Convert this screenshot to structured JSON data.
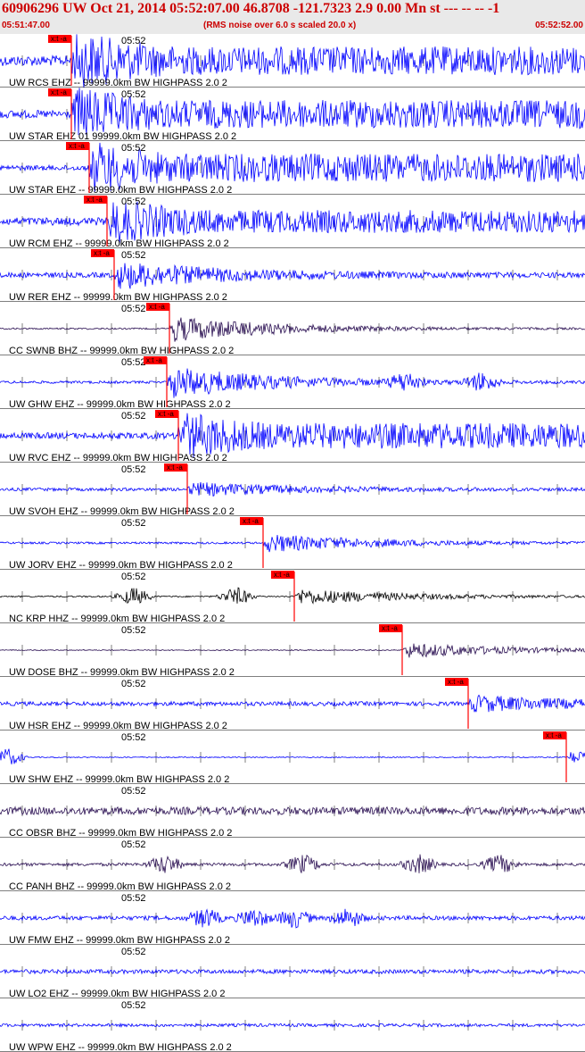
{
  "header": {
    "title": "60906296 UW Oct 21, 2014 05:52:07.00   46.8708 -121.7323  2.9 0.00 Mn st --- -- --  -1",
    "start_time": "05:51:47.00",
    "rms_note": "(RMS noise over 6.0 s scaled 20.0 x)",
    "end_time": "05:52:52.00"
  },
  "minute_label": "05:52",
  "pick_label": "x:t -a",
  "colors": {
    "blue": "#0000ff",
    "purple": "#2a0f52",
    "black": "#000000",
    "pick": "#ff0000",
    "grid": "#000000"
  },
  "traces": [
    {
      "label": "UW RCS EHZ -- 99999.0km BW  HIGHPASS  2.0  2",
      "color": "blue",
      "pick": 80,
      "level": 0.2,
      "amp": 1.0,
      "bursts": []
    },
    {
      "label": "UW STAR EHZ 01 99999.0km BW  HIGHPASS  2.0  2",
      "color": "blue",
      "pick": 80,
      "level": 0.15,
      "amp": 1.0,
      "bursts": []
    },
    {
      "label": "UW STAR EHZ -- 99999.0km BW  HIGHPASS  2.0  2",
      "color": "blue",
      "pick": 100,
      "level": 0.1,
      "amp": 1.0,
      "bursts": []
    },
    {
      "label": "UW RCM EHZ -- 99999.0km BW  HIGHPASS  2.0  2",
      "color": "blue",
      "pick": 120,
      "level": 0.15,
      "amp": 0.8,
      "bursts": []
    },
    {
      "label": "UW RER EHZ -- 99999.0km BW  HIGHPASS  2.0  2",
      "color": "blue",
      "pick": 128,
      "level": 0.1,
      "amp": 0.5,
      "bursts": []
    },
    {
      "label": "CC SWNB BHZ -- 99999.0km BW  HIGHPASS  2.0  2",
      "color": "purple",
      "pick": 190,
      "level": 0.03,
      "amp": 0.5,
      "bursts": []
    },
    {
      "label": "UW GHW EHZ -- 99999.0km BW  HIGHPASS  2.0  2",
      "color": "blue",
      "pick": 187,
      "level": 0.05,
      "amp": 0.6,
      "bursts": [
        455,
        540
      ]
    },
    {
      "label": "UW RVC EHZ -- 99999.0km BW  HIGHPASS  2.0  2",
      "color": "blue",
      "pick": 200,
      "level": 0.12,
      "amp": 0.9,
      "bursts": []
    },
    {
      "label": "UW SVOH EHZ -- 99999.0km BW  HIGHPASS  2.0  2",
      "color": "blue",
      "pick": 210,
      "level": 0.06,
      "amp": 0.25,
      "bursts": []
    },
    {
      "label": "UW JORV EHZ -- 99999.0km BW  HIGHPASS  2.0  2",
      "color": "blue",
      "pick": 295,
      "level": 0.04,
      "amp": 0.35,
      "bursts": []
    },
    {
      "label": "NC KRP HHZ -- 99999.0km BW  HIGHPASS  2.0  2",
      "color": "black",
      "pick": 330,
      "level": 0.03,
      "amp": 0.3,
      "bursts": [
        150,
        265
      ]
    },
    {
      "label": "UW DOSE BHZ -- 99999.0km BW  HIGHPASS  2.0  2",
      "color": "purple",
      "pick": 451,
      "level": 0.02,
      "amp": 0.3,
      "bursts": []
    },
    {
      "label": "UW HSR EHZ -- 99999.0km BW  HIGHPASS  2.0  2",
      "color": "blue",
      "pick": 525,
      "level": 0.08,
      "amp": 0.3,
      "bursts": []
    },
    {
      "label": "UW SHW EHZ -- 99999.0km BW  HIGHPASS  2.0  2",
      "color": "blue",
      "pick": 635,
      "level": 0.02,
      "amp": 0.25,
      "bursts": [
        8
      ]
    },
    {
      "label": "CC OBSR BHZ -- 99999.0km BW  HIGHPASS  2.0  2",
      "color": "purple",
      "pick": null,
      "level": 0.15,
      "amp": 0.0,
      "bursts": []
    },
    {
      "label": "CC PANH BHZ -- 99999.0km BW  HIGHPASS  2.0  2",
      "color": "purple",
      "pick": null,
      "level": 0.06,
      "amp": 0.0,
      "bursts": [
        185,
        340,
        470,
        560
      ]
    },
    {
      "label": "UW FMW EHZ -- 99999.0km BW  HIGHPASS  2.0  2",
      "color": "blue",
      "pick": null,
      "level": 0.08,
      "amp": 0.0,
      "bursts": [
        230,
        285,
        330,
        390
      ]
    },
    {
      "label": "UW LO2 EHZ -- 99999.0km BW  HIGHPASS  2.0  2",
      "color": "blue",
      "pick": null,
      "level": 0.08,
      "amp": 0.0,
      "bursts": []
    },
    {
      "label": "UW WPW EHZ -- 99999.0km BW  HIGHPASS  2.0  2",
      "color": "blue",
      "pick": null,
      "level": 0.06,
      "amp": 0.0,
      "bursts": []
    }
  ]
}
